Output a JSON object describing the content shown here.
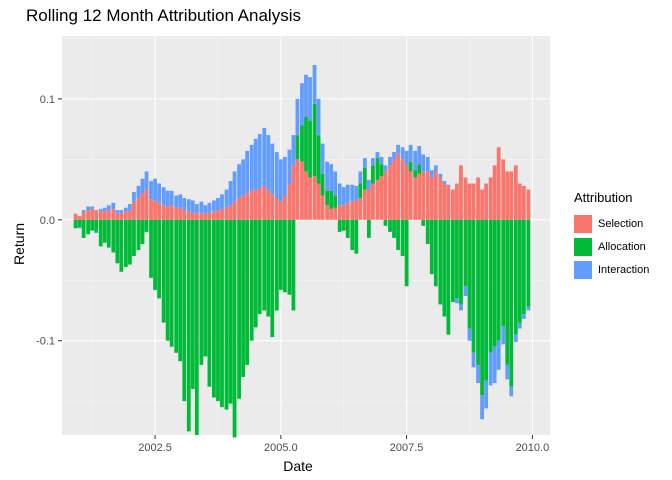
{
  "chart_data": {
    "type": "bar",
    "stacked": true,
    "title": "Rolling 12 Month Attribution Analysis",
    "xlabel": "Date",
    "ylabel": "Return",
    "xlim": [
      2000.65,
      2010.35
    ],
    "ylim": [
      -0.178,
      0.152
    ],
    "x_ticks": [
      2002.5,
      2005.0,
      2007.5,
      2010.0
    ],
    "x_tick_labels": [
      "2002.5",
      "2005.0",
      "2007.5",
      "2010.0"
    ],
    "y_ticks": [
      0.1,
      0.0,
      -0.1
    ],
    "y_tick_labels": [
      "0.1",
      "0.0",
      "-0.1"
    ],
    "grid": true,
    "legend": {
      "title": "Attribution",
      "position": "right"
    },
    "bar_width": 0.075,
    "dates": [
      2000.92,
      2001.0,
      2001.08,
      2001.17,
      2001.25,
      2001.33,
      2001.42,
      2001.5,
      2001.58,
      2001.67,
      2001.75,
      2001.83,
      2001.92,
      2002.0,
      2002.08,
      2002.17,
      2002.25,
      2002.33,
      2002.42,
      2002.5,
      2002.58,
      2002.67,
      2002.75,
      2002.83,
      2002.92,
      2003.0,
      2003.08,
      2003.17,
      2003.25,
      2003.33,
      2003.42,
      2003.5,
      2003.58,
      2003.67,
      2003.75,
      2003.83,
      2003.92,
      2004.0,
      2004.08,
      2004.17,
      2004.25,
      2004.33,
      2004.42,
      2004.5,
      2004.58,
      2004.67,
      2004.75,
      2004.83,
      2004.92,
      2005.0,
      2005.08,
      2005.17,
      2005.25,
      2005.33,
      2005.42,
      2005.5,
      2005.58,
      2005.67,
      2005.75,
      2005.83,
      2005.92,
      2006.0,
      2006.08,
      2006.17,
      2006.25,
      2006.33,
      2006.42,
      2006.5,
      2006.58,
      2006.67,
      2006.75,
      2006.83,
      2006.92,
      2007.0,
      2007.08,
      2007.17,
      2007.25,
      2007.33,
      2007.42,
      2007.5,
      2007.58,
      2007.67,
      2007.75,
      2007.83,
      2007.92,
      2008.0,
      2008.08,
      2008.17,
      2008.25,
      2008.33,
      2008.42,
      2008.5,
      2008.58,
      2008.67,
      2008.75,
      2008.83,
      2008.92,
      2009.0,
      2009.08,
      2009.17,
      2009.25,
      2009.33,
      2009.42,
      2009.5,
      2009.58,
      2009.67,
      2009.75,
      2009.83,
      2009.92
    ],
    "series": [
      {
        "name": "Selection",
        "color": "#F8766D",
        "values": [
          0.005,
          0.003,
          0.006,
          0.008,
          0.009,
          0.008,
          0.007,
          0.007,
          0.008,
          0.009,
          0.005,
          0.006,
          0.007,
          0.008,
          0.015,
          0.018,
          0.022,
          0.025,
          0.017,
          0.016,
          0.014,
          0.012,
          0.011,
          0.012,
          0.01,
          0.01,
          0.008,
          0.007,
          0.006,
          0.005,
          0.006,
          0.005,
          0.006,
          0.007,
          0.008,
          0.009,
          0.01,
          0.012,
          0.015,
          0.018,
          0.02,
          0.022,
          0.024,
          0.025,
          0.026,
          0.028,
          0.024,
          0.021,
          0.018,
          0.015,
          0.02,
          0.03,
          0.045,
          0.05,
          0.048,
          0.04,
          0.035,
          0.036,
          0.03,
          0.02,
          0.012,
          0.009,
          0.01,
          0.012,
          0.012,
          0.014,
          0.015,
          0.016,
          0.018,
          0.025,
          0.025,
          0.03,
          0.033,
          0.036,
          0.04,
          0.045,
          0.05,
          0.055,
          0.05,
          0.045,
          0.04,
          0.035,
          0.038,
          0.04,
          0.04,
          0.035,
          0.04,
          0.035,
          0.03,
          0.028,
          0.025,
          0.03,
          0.045,
          0.035,
          0.03,
          0.03,
          0.035,
          0.025,
          0.03,
          0.035,
          0.045,
          0.06,
          0.05,
          0.04,
          0.04,
          0.045,
          0.03,
          0.028,
          0.025
        ]
      },
      {
        "name": "Allocation",
        "color": "#00BA38",
        "values": [
          -0.007,
          -0.006,
          -0.015,
          -0.012,
          -0.009,
          -0.01,
          -0.022,
          -0.019,
          -0.023,
          -0.027,
          -0.036,
          -0.043,
          -0.039,
          -0.037,
          -0.03,
          -0.025,
          -0.02,
          -0.01,
          -0.048,
          -0.058,
          -0.065,
          -0.085,
          -0.1,
          -0.105,
          -0.11,
          -0.117,
          -0.15,
          -0.175,
          -0.14,
          -0.178,
          -0.12,
          -0.113,
          -0.138,
          -0.147,
          -0.15,
          -0.155,
          -0.157,
          -0.152,
          -0.18,
          -0.148,
          -0.13,
          -0.12,
          -0.1,
          -0.089,
          -0.078,
          -0.075,
          -0.08,
          -0.097,
          -0.075,
          -0.058,
          -0.06,
          -0.062,
          -0.075,
          0.02,
          0.03,
          0.045,
          0.047,
          0.06,
          0.04,
          0.018,
          0.012,
          0.015,
          0.01,
          -0.01,
          -0.009,
          -0.015,
          -0.025,
          -0.028,
          0.012,
          0.018,
          -0.015,
          0.015,
          0.018,
          0.01,
          -0.005,
          -0.01,
          -0.015,
          -0.025,
          -0.03,
          -0.055,
          0.008,
          0.006,
          0.008,
          -0.005,
          -0.02,
          -0.045,
          -0.055,
          -0.07,
          -0.08,
          -0.095,
          -0.068,
          -0.065,
          -0.07,
          -0.055,
          -0.09,
          -0.11,
          -0.12,
          -0.145,
          -0.133,
          -0.11,
          -0.105,
          -0.1,
          -0.088,
          -0.12,
          -0.138,
          -0.095,
          -0.085,
          -0.078,
          -0.072
        ]
      },
      {
        "name": "Interaction",
        "color": "#619CFF",
        "values": [
          0.0,
          -0.001,
          0.002,
          0.003,
          0.002,
          -0.001,
          0.002,
          0.003,
          0.004,
          0.005,
          0.003,
          0.002,
          0.003,
          0.005,
          0.008,
          0.01,
          0.012,
          0.015,
          0.015,
          0.018,
          0.016,
          0.015,
          0.013,
          0.012,
          0.01,
          0.011,
          0.01,
          0.01,
          0.01,
          0.008,
          0.009,
          0.007,
          0.008,
          0.009,
          0.01,
          0.012,
          0.015,
          0.02,
          0.025,
          0.028,
          0.03,
          0.035,
          0.038,
          0.042,
          0.045,
          0.048,
          0.046,
          0.042,
          0.038,
          0.035,
          0.032,
          0.028,
          0.025,
          0.03,
          0.035,
          0.035,
          0.036,
          0.032,
          0.03,
          0.025,
          0.024,
          0.022,
          0.02,
          0.018,
          0.015,
          0.015,
          0.014,
          0.012,
          0.01,
          0.008,
          0.008,
          0.006,
          0.005,
          0.006,
          0.005,
          0.007,
          0.006,
          0.007,
          0.01,
          0.012,
          0.014,
          0.016,
          0.015,
          0.014,
          0.012,
          0.006,
          0.005,
          0.003,
          0.002,
          0.001,
          0.0,
          -0.004,
          -0.005,
          -0.008,
          -0.01,
          -0.012,
          -0.015,
          -0.02,
          -0.023,
          -0.027,
          -0.03,
          -0.024,
          -0.015,
          -0.012,
          -0.008,
          -0.006,
          -0.005,
          -0.004,
          -0.003
        ]
      }
    ]
  }
}
